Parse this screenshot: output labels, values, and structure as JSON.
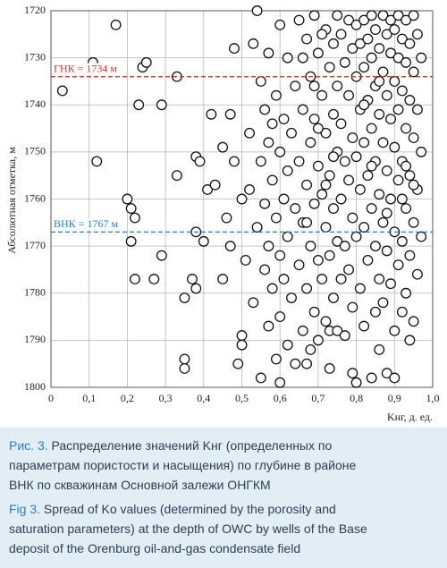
{
  "chart_data": {
    "type": "scatter",
    "y_label": "Абсолютная отметка, м",
    "x_label": "Kнг, д. ед.",
    "xlim": [
      0,
      1
    ],
    "ylim": [
      1800,
      1720
    ],
    "xticks": [
      0,
      {
        "value": 0.1,
        "label": "0,1"
      },
      {
        "value": 0.2,
        "label": "0,2"
      },
      {
        "value": 0.3,
        "label": "0,3"
      },
      {
        "value": 0.4,
        "label": "0,4"
      },
      {
        "value": 0.5,
        "label": "0,5"
      },
      {
        "value": 0.6,
        "label": "0,6"
      },
      {
        "value": 0.7,
        "label": "0,7"
      },
      {
        "value": 0.8,
        "label": "0,8"
      },
      {
        "value": 0.9,
        "label": "0,9"
      },
      {
        "value": 1,
        "label": "1,0"
      }
    ],
    "yticks": [
      1720,
      1730,
      1740,
      1750,
      1760,
      1770,
      1780,
      1790,
      1800
    ],
    "grid": true,
    "marker_fill": "#ffffff",
    "marker_stroke": "#111111",
    "reference_lines": [
      {
        "label": "ГНК = 1734 м",
        "value": 1734,
        "color": "#d9342b"
      },
      {
        "label": "ВНК = 1767 м",
        "value": 1767,
        "color": "#2a7fc1"
      }
    ],
    "x": [
      0.03,
      0.11,
      0.12,
      0.17,
      0.2,
      0.21,
      0.21,
      0.22,
      0.22,
      0.23,
      0.24,
      0.25,
      0.27,
      0.29,
      0.29,
      0.33,
      0.33,
      0.35,
      0.35,
      0.35,
      0.37,
      0.38,
      0.38,
      0.38,
      0.39,
      0.4,
      0.41,
      0.42,
      0.43,
      0.45,
      0.45,
      0.46,
      0.47,
      0.47,
      0.48,
      0.48,
      0.49,
      0.5,
      0.5,
      0.5,
      0.51,
      0.52,
      0.52,
      0.53,
      0.53,
      0.54,
      0.54,
      0.55,
      0.55,
      0.55,
      0.56,
      0.56,
      0.56,
      0.57,
      0.57,
      0.57,
      0.57,
      0.58,
      0.58,
      0.58,
      0.59,
      0.59,
      0.59,
      0.6,
      0.6,
      0.6,
      0.6,
      0.6,
      0.61,
      0.61,
      0.61,
      0.62,
      0.62,
      0.62,
      0.62,
      0.63,
      0.63,
      0.64,
      0.64,
      0.64,
      0.65,
      0.65,
      0.65,
      0.66,
      0.66,
      0.66,
      0.67,
      0.67,
      0.67,
      0.67,
      0.68,
      0.68,
      0.68,
      0.69,
      0.69,
      0.69,
      0.69,
      0.7,
      0.7,
      0.7,
      0.7,
      0.71,
      0.71,
      0.71,
      0.72,
      0.72,
      0.72,
      0.72,
      0.73,
      0.73,
      0.73,
      0.73,
      0.74,
      0.74,
      0.74,
      0.74,
      0.75,
      0.75,
      0.75,
      0.75,
      0.66,
      0.68,
      0.7,
      0.71,
      0.72,
      0.73,
      0.74,
      0.67,
      0.69,
      0.75,
      0.76,
      0.76,
      0.76,
      0.76,
      0.77,
      0.77,
      0.77,
      0.77,
      0.78,
      0.78,
      0.78,
      0.78,
      0.79,
      0.79,
      0.79,
      0.79,
      0.8,
      0.8,
      0.8,
      0.8,
      0.8,
      0.81,
      0.81,
      0.81,
      0.81,
      0.82,
      0.82,
      0.82,
      0.82,
      0.82,
      0.83,
      0.83,
      0.83,
      0.83,
      0.84,
      0.84,
      0.84,
      0.84,
      0.84,
      0.85,
      0.85,
      0.85,
      0.85,
      0.85,
      0.86,
      0.86,
      0.86,
      0.86,
      0.86,
      0.79,
      0.87,
      0.87,
      0.87,
      0.87,
      0.87,
      0.88,
      0.88,
      0.88,
      0.88,
      0.88,
      0.89,
      0.89,
      0.89,
      0.89,
      0.89,
      0.9,
      0.9,
      0.9,
      0.9,
      0.9,
      0.91,
      0.91,
      0.91,
      0.91,
      0.91,
      0.92,
      0.92,
      0.92,
      0.92,
      0.92,
      0.93,
      0.93,
      0.93,
      0.93,
      0.93,
      0.94,
      0.94,
      0.94,
      0.94,
      0.94,
      0.95,
      0.95,
      0.95,
      0.95,
      0.95,
      0.96,
      0.96,
      0.96,
      0.96,
      0.97,
      0.97,
      0.97,
      0.9,
      0.92,
      0.88,
      0.86,
      0.84,
      0.82,
      0.93,
      0.95
    ],
    "values": [
      1737,
      1731,
      1752,
      1723,
      1760,
      1762,
      1769,
      1764,
      1777,
      1740,
      1732,
      1731,
      1777,
      1740,
      1772,
      1734,
      1755,
      1781,
      1794,
      1796,
      1777,
      1751,
      1767,
      1779,
      1752,
      1769,
      1758,
      1742,
      1757,
      1777,
      1749,
      1764,
      1742,
      1770,
      1728,
      1752,
      1795,
      1789,
      1791,
      1760,
      1773,
      1746,
      1758,
      1727,
      1782,
      1720,
      1766,
      1735,
      1752,
      1798,
      1741,
      1761,
      1775,
      1729,
      1748,
      1770,
      1787,
      1744,
      1756,
      1779,
      1738,
      1764,
      1794,
      1723,
      1750,
      1772,
      1785,
      1799,
      1743,
      1760,
      1777,
      1730,
      1754,
      1768,
      1791,
      1746,
      1781,
      1736,
      1762,
      1795,
      1722,
      1752,
      1774,
      1741,
      1765,
      1788,
      1726,
      1757,
      1779,
      1795,
      1734,
      1748,
      1770,
      1721,
      1743,
      1761,
      1784,
      1729,
      1753,
      1773,
      1790,
      1738,
      1759,
      1777,
      1724,
      1746,
      1766,
      1786,
      1732,
      1755,
      1772,
      1796,
      1727,
      1742,
      1762,
      1781,
      1721,
      1736,
      1750,
      1769,
      1730,
      1792,
      1745,
      1725,
      1757,
      1788,
      1751,
      1765,
      1736,
      1788,
      1725,
      1744,
      1760,
      1777,
      1731,
      1752,
      1770,
      1789,
      1722,
      1738,
      1756,
      1775,
      1728,
      1747,
      1764,
      1783,
      1723,
      1734,
      1751,
      1768,
      1799,
      1727,
      1741,
      1758,
      1779,
      1722,
      1732,
      1748,
      1766,
      1787,
      1726,
      1739,
      1755,
      1773,
      1721,
      1730,
      1745,
      1762,
      1798,
      1724,
      1736,
      1752,
      1770,
      1784,
      1728,
      1742,
      1759,
      1777,
      1792,
      1797,
      1721,
      1733,
      1748,
      1765,
      1782,
      1725,
      1738,
      1754,
      1771,
      1797,
      1722,
      1729,
      1743,
      1760,
      1778,
      1724,
      1735,
      1749,
      1767,
      1788,
      1721,
      1730,
      1741,
      1756,
      1774,
      1726,
      1737,
      1752,
      1769,
      1784,
      1722,
      1731,
      1745,
      1762,
      1780,
      1727,
      1739,
      1755,
      1772,
      1790,
      1721,
      1733,
      1747,
      1765,
      1786,
      1725,
      1741,
      1758,
      1776,
      1730,
      1750,
      1768,
      1798,
      1760,
      1763,
      1735,
      1753,
      1740,
      1753,
      1757
    ]
  },
  "caption": {
    "ru_label": "Рис. 3.",
    "ru_lines": [
      "Распределение значений Kнг (определенных по",
      "параметрам пористости и насыщения) по глубине в районе",
      "ВНК по скважинам Основной залежи ОНГКМ"
    ],
    "en_label": "Fig 3.",
    "en_lines": [
      "Spread of Ko values (determined by the porosity and",
      "saturation parameters) at the depth of OWC by wells of the Base",
      "deposit of the Orenburg oil-and-gas condensate field"
    ]
  }
}
